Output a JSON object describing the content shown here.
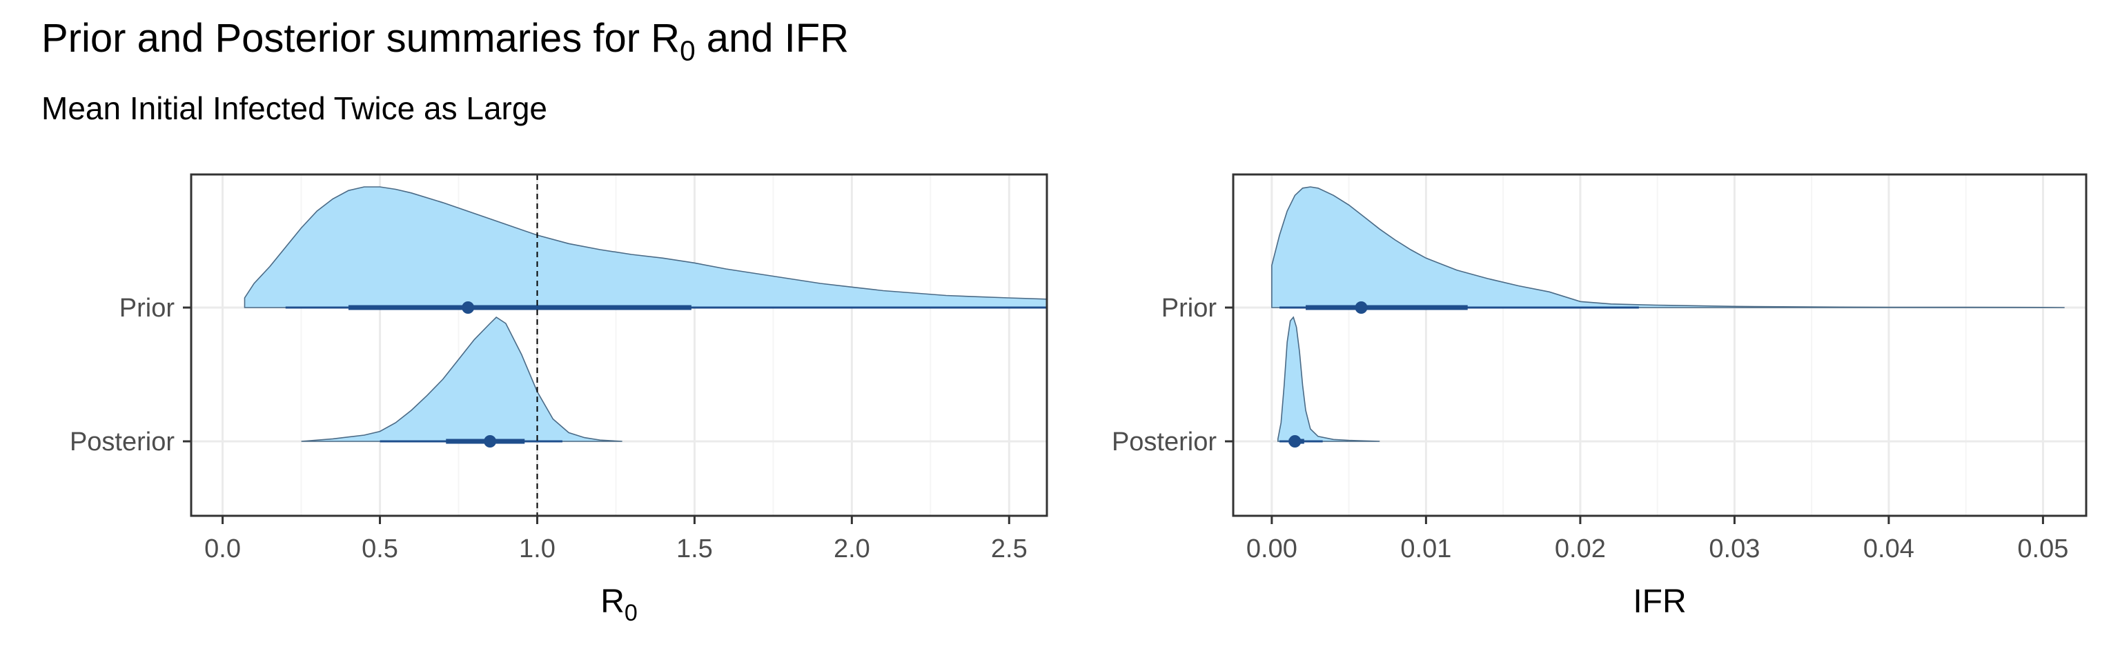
{
  "title": {
    "text": "Prior and Posterior summaries for R",
    "sub": "0",
    "suffix": " and IFR"
  },
  "subtitle": "Mean Initial Infected Twice as Large",
  "chart_data": [
    {
      "type": "area",
      "panel": "R0",
      "xlabel": "R",
      "xlabel_sub": "0",
      "ylabel": "",
      "xlim": [
        -0.1,
        2.62
      ],
      "xticks": [
        0.0,
        0.5,
        1.0,
        1.5,
        2.0,
        2.5
      ],
      "xtick_labels": [
        "0.0",
        "0.5",
        "1.0",
        "1.5",
        "2.0",
        "2.5"
      ],
      "categories": [
        "Prior",
        "Posterior"
      ],
      "reference_line": 1.0,
      "grid": true,
      "series": [
        {
          "name": "Prior",
          "density": {
            "x": [
              0.07,
              0.1,
              0.15,
              0.2,
              0.25,
              0.3,
              0.35,
              0.4,
              0.45,
              0.5,
              0.55,
              0.6,
              0.7,
              0.8,
              0.9,
              1.0,
              1.1,
              1.2,
              1.3,
              1.4,
              1.5,
              1.6,
              1.7,
              1.8,
              1.9,
              2.0,
              2.1,
              2.2,
              2.3,
              2.4,
              2.5,
              2.62
            ],
            "y": [
              0.08,
              0.2,
              0.34,
              0.5,
              0.66,
              0.8,
              0.9,
              0.97,
              1.0,
              1.0,
              0.98,
              0.95,
              0.87,
              0.78,
              0.69,
              0.6,
              0.53,
              0.48,
              0.44,
              0.41,
              0.37,
              0.32,
              0.28,
              0.24,
              0.2,
              0.17,
              0.14,
              0.12,
              0.1,
              0.09,
              0.08,
              0.07
            ]
          },
          "point": 0.78,
          "interval_inner": [
            0.4,
            1.49
          ],
          "interval_outer": [
            0.2,
            2.62
          ]
        },
        {
          "name": "Posterior",
          "density": {
            "x": [
              0.25,
              0.35,
              0.45,
              0.5,
              0.55,
              0.6,
              0.65,
              0.7,
              0.75,
              0.8,
              0.85,
              0.87,
              0.9,
              0.95,
              1.0,
              1.05,
              1.1,
              1.15,
              1.2,
              1.27
            ],
            "y": [
              0.0,
              0.02,
              0.05,
              0.08,
              0.15,
              0.25,
              0.37,
              0.5,
              0.66,
              0.82,
              0.95,
              1.0,
              0.95,
              0.7,
              0.4,
              0.18,
              0.07,
              0.03,
              0.01,
              0.0
            ]
          },
          "point": 0.85,
          "interval_inner": [
            0.71,
            0.96
          ],
          "interval_outer": [
            0.5,
            1.08
          ]
        }
      ]
    },
    {
      "type": "area",
      "panel": "IFR",
      "xlabel": "IFR",
      "ylabel": "",
      "xlim": [
        -0.0025,
        0.0528
      ],
      "xticks": [
        0.0,
        0.01,
        0.02,
        0.03,
        0.04,
        0.05
      ],
      "xtick_labels": [
        "0.00",
        "0.01",
        "0.02",
        "0.03",
        "0.04",
        "0.05"
      ],
      "categories": [
        "Prior",
        "Posterior"
      ],
      "grid": true,
      "series": [
        {
          "name": "Prior",
          "density": {
            "x": [
              0.0,
              0.0005,
              0.001,
              0.0015,
              0.002,
              0.0025,
              0.003,
              0.004,
              0.005,
              0.006,
              0.007,
              0.008,
              0.009,
              0.01,
              0.012,
              0.014,
              0.016,
              0.018,
              0.02,
              0.022,
              0.025,
              0.03,
              0.035,
              0.04,
              0.045,
              0.05,
              0.0514
            ],
            "y": [
              0.35,
              0.6,
              0.8,
              0.93,
              0.99,
              1.0,
              0.99,
              0.93,
              0.85,
              0.75,
              0.65,
              0.56,
              0.48,
              0.41,
              0.31,
              0.24,
              0.18,
              0.13,
              0.05,
              0.03,
              0.02,
              0.01,
              0.005,
              0.003,
              0.002,
              0.001,
              0.0
            ]
          },
          "point": 0.0058,
          "interval_inner": [
            0.0022,
            0.0127
          ],
          "interval_outer": [
            0.0005,
            0.0238
          ]
        },
        {
          "name": "Posterior",
          "density": {
            "x": [
              0.0004,
              0.0006,
              0.0008,
              0.001,
              0.0012,
              0.0014,
              0.0016,
              0.0018,
              0.002,
              0.0022,
              0.0025,
              0.003,
              0.004,
              0.005,
              0.007
            ],
            "y": [
              0.02,
              0.15,
              0.45,
              0.8,
              0.97,
              1.0,
              0.92,
              0.72,
              0.45,
              0.25,
              0.1,
              0.04,
              0.015,
              0.008,
              0.0
            ]
          },
          "point": 0.0015,
          "interval_inner": [
            0.0011,
            0.0021
          ],
          "interval_outer": [
            0.0005,
            0.0033
          ]
        }
      ]
    }
  ],
  "colors": {
    "fill": "#ADDFFA",
    "outline": "#4A6A86",
    "interval": "#1F4E8C",
    "grid_major": "#EBEBEB",
    "grid_minor": "#F5F5F5",
    "axis_text": "#4D4D4D",
    "panel_border": "#333333"
  }
}
